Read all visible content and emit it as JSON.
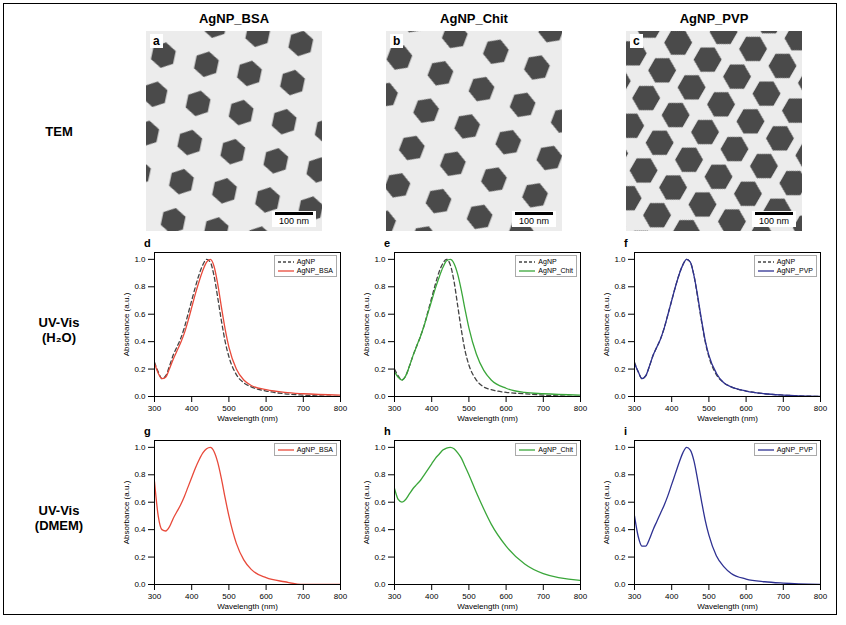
{
  "columns": [
    "AgNP_BSA",
    "AgNP_Chit",
    "AgNP_PVP"
  ],
  "row_labels": [
    "TEM",
    "UV-Vis (H₂O)",
    "UV-Vis (DMEM)"
  ],
  "tem_panels": [
    {
      "panel": "a",
      "scale_bar": "100 nm"
    },
    {
      "panel": "b",
      "scale_bar": "100 nm"
    },
    {
      "panel": "c",
      "scale_bar": "100 nm"
    }
  ],
  "chart_data": [
    {
      "panel": "d",
      "type": "line",
      "x_label": "Wavelength (nm)",
      "y_label": "Absorbance (a.u.)",
      "xlim": [
        300,
        800
      ],
      "ylim": [
        0,
        1.05
      ],
      "xticks": [
        300,
        400,
        500,
        600,
        700,
        800
      ],
      "yticks": [
        {
          "value": 0,
          "label": "0.0"
        },
        {
          "value": 0.2,
          "label": "0.2"
        },
        {
          "value": 0.4,
          "label": "0.4"
        },
        {
          "value": 0.6,
          "label": "0.6"
        },
        {
          "value": 0.8,
          "label": "0.8"
        },
        {
          "value": 1,
          "label": "1.0"
        }
      ],
      "grid": false,
      "legend": "upper right",
      "x": [
        300,
        310,
        320,
        330,
        340,
        350,
        360,
        370,
        380,
        390,
        400,
        410,
        420,
        430,
        440,
        450,
        460,
        470,
        480,
        490,
        500,
        520,
        540,
        560,
        600,
        650,
        700,
        800
      ],
      "series": [
        {
          "name": "AgNP",
          "color": "#444444",
          "line_style": "dashed",
          "values": [
            0.25,
            0.18,
            0.13,
            0.15,
            0.22,
            0.3,
            0.36,
            0.42,
            0.5,
            0.6,
            0.7,
            0.8,
            0.89,
            0.96,
            1.0,
            0.98,
            0.88,
            0.72,
            0.55,
            0.4,
            0.29,
            0.16,
            0.1,
            0.07,
            0.04,
            0.02,
            0.01,
            0.0
          ]
        },
        {
          "name": "AgNP_BSA",
          "color": "#e8493a",
          "line_style": "solid",
          "values": [
            0.24,
            0.17,
            0.13,
            0.14,
            0.2,
            0.27,
            0.33,
            0.39,
            0.46,
            0.55,
            0.65,
            0.75,
            0.84,
            0.92,
            0.98,
            1.0,
            0.95,
            0.82,
            0.65,
            0.49,
            0.36,
            0.2,
            0.12,
            0.08,
            0.05,
            0.03,
            0.02,
            0.01
          ]
        }
      ]
    },
    {
      "panel": "e",
      "type": "line",
      "x_label": "Wavelength (nm)",
      "y_label": "Absorbance (a.u.)",
      "xlim": [
        300,
        800
      ],
      "ylim": [
        0,
        1.05
      ],
      "xticks": [
        300,
        400,
        500,
        600,
        700,
        800
      ],
      "yticks": [
        {
          "value": 0,
          "label": "0.0"
        },
        {
          "value": 0.2,
          "label": "0.2"
        },
        {
          "value": 0.4,
          "label": "0.4"
        },
        {
          "value": 0.6,
          "label": "0.6"
        },
        {
          "value": 0.8,
          "label": "0.8"
        },
        {
          "value": 1,
          "label": "1.0"
        }
      ],
      "grid": false,
      "legend": "upper right",
      "x": [
        300,
        310,
        320,
        330,
        340,
        350,
        360,
        370,
        380,
        390,
        400,
        410,
        420,
        430,
        440,
        450,
        460,
        470,
        480,
        490,
        500,
        520,
        540,
        560,
        600,
        650,
        700,
        800
      ],
      "series": [
        {
          "name": "AgNP",
          "color": "#444444",
          "line_style": "dashed",
          "values": [
            0.2,
            0.15,
            0.12,
            0.15,
            0.22,
            0.3,
            0.37,
            0.44,
            0.52,
            0.62,
            0.72,
            0.82,
            0.91,
            0.97,
            1.0,
            0.96,
            0.84,
            0.66,
            0.48,
            0.33,
            0.23,
            0.12,
            0.07,
            0.05,
            0.03,
            0.02,
            0.01,
            0.0
          ]
        },
        {
          "name": "AgNP_Chit",
          "color": "#3aa63a",
          "line_style": "solid",
          "values": [
            0.18,
            0.14,
            0.12,
            0.15,
            0.22,
            0.3,
            0.37,
            0.44,
            0.52,
            0.61,
            0.7,
            0.79,
            0.87,
            0.94,
            0.99,
            1.0,
            0.97,
            0.89,
            0.77,
            0.63,
            0.5,
            0.31,
            0.19,
            0.12,
            0.06,
            0.03,
            0.02,
            0.01
          ]
        }
      ]
    },
    {
      "panel": "f",
      "type": "line",
      "x_label": "Wavelength (nm)",
      "y_label": "Absorbance (a.u.)",
      "xlim": [
        300,
        800
      ],
      "ylim": [
        0,
        1.05
      ],
      "xticks": [
        300,
        400,
        500,
        600,
        700,
        800
      ],
      "yticks": [
        {
          "value": 0,
          "label": "0.0"
        },
        {
          "value": 0.2,
          "label": "0.2"
        },
        {
          "value": 0.4,
          "label": "0.4"
        },
        {
          "value": 0.6,
          "label": "0.6"
        },
        {
          "value": 0.8,
          "label": "0.8"
        },
        {
          "value": 1,
          "label": "1.0"
        }
      ],
      "grid": false,
      "legend": "upper right",
      "x": [
        300,
        310,
        320,
        330,
        340,
        350,
        360,
        370,
        380,
        390,
        400,
        410,
        420,
        430,
        440,
        450,
        460,
        470,
        480,
        490,
        500,
        520,
        540,
        560,
        600,
        650,
        700,
        800
      ],
      "series": [
        {
          "name": "AgNP",
          "color": "#444444",
          "line_style": "dashed",
          "values": [
            0.25,
            0.18,
            0.13,
            0.15,
            0.22,
            0.3,
            0.36,
            0.42,
            0.5,
            0.6,
            0.7,
            0.8,
            0.89,
            0.96,
            1.0,
            0.98,
            0.88,
            0.72,
            0.55,
            0.4,
            0.29,
            0.16,
            0.1,
            0.07,
            0.04,
            0.02,
            0.01,
            0.0
          ]
        },
        {
          "name": "AgNP_PVP",
          "color": "#2e3192",
          "line_style": "solid",
          "values": [
            0.24,
            0.18,
            0.13,
            0.15,
            0.22,
            0.3,
            0.36,
            0.42,
            0.5,
            0.6,
            0.7,
            0.8,
            0.89,
            0.96,
            1.0,
            0.98,
            0.88,
            0.73,
            0.56,
            0.41,
            0.3,
            0.17,
            0.1,
            0.07,
            0.04,
            0.02,
            0.01,
            0.0
          ]
        }
      ]
    },
    {
      "panel": "g",
      "type": "line",
      "x_label": "Wavelength (nm)",
      "y_label": "Absorbance (a.u.)",
      "xlim": [
        300,
        800
      ],
      "ylim": [
        0,
        1.05
      ],
      "xticks": [
        300,
        400,
        500,
        600,
        700,
        800
      ],
      "yticks": [
        {
          "value": 0,
          "label": "0.0"
        },
        {
          "value": 0.2,
          "label": "0.2"
        },
        {
          "value": 0.4,
          "label": "0.4"
        },
        {
          "value": 0.6,
          "label": "0.6"
        },
        {
          "value": 0.8,
          "label": "0.8"
        },
        {
          "value": 1,
          "label": "1.0"
        }
      ],
      "grid": false,
      "legend": "upper right",
      "x": [
        300,
        310,
        320,
        330,
        340,
        350,
        360,
        370,
        380,
        390,
        400,
        410,
        420,
        430,
        440,
        450,
        460,
        470,
        480,
        490,
        500,
        520,
        540,
        560,
        600,
        650,
        700,
        800
      ],
      "series": [
        {
          "name": "AgNP_BSA",
          "color": "#e8493a",
          "line_style": "solid",
          "values": [
            0.75,
            0.5,
            0.4,
            0.39,
            0.42,
            0.48,
            0.53,
            0.58,
            0.64,
            0.71,
            0.78,
            0.85,
            0.91,
            0.96,
            0.99,
            1.0,
            0.97,
            0.89,
            0.77,
            0.63,
            0.5,
            0.3,
            0.18,
            0.11,
            0.05,
            0.02,
            0.0,
            0.0
          ]
        }
      ]
    },
    {
      "panel": "h",
      "type": "line",
      "x_label": "Wavelength (nm)",
      "y_label": "Absorbance (a.u.)",
      "xlim": [
        300,
        800
      ],
      "ylim": [
        0,
        1.05
      ],
      "xticks": [
        300,
        400,
        500,
        600,
        700,
        800
      ],
      "yticks": [
        {
          "value": 0,
          "label": "0.0"
        },
        {
          "value": 0.2,
          "label": "0.2"
        },
        {
          "value": 0.4,
          "label": "0.4"
        },
        {
          "value": 0.6,
          "label": "0.6"
        },
        {
          "value": 0.8,
          "label": "0.8"
        },
        {
          "value": 1,
          "label": "1.0"
        }
      ],
      "grid": false,
      "legend": "upper right",
      "x": [
        300,
        310,
        320,
        330,
        340,
        350,
        360,
        370,
        380,
        390,
        400,
        410,
        420,
        430,
        440,
        450,
        460,
        470,
        480,
        490,
        500,
        520,
        540,
        560,
        600,
        650,
        700,
        800
      ],
      "series": [
        {
          "name": "AgNP_Chit",
          "color": "#3aa63a",
          "line_style": "solid",
          "values": [
            0.7,
            0.62,
            0.6,
            0.62,
            0.66,
            0.7,
            0.73,
            0.76,
            0.8,
            0.84,
            0.88,
            0.92,
            0.95,
            0.98,
            0.995,
            1.0,
            0.99,
            0.96,
            0.92,
            0.86,
            0.8,
            0.67,
            0.55,
            0.44,
            0.28,
            0.15,
            0.08,
            0.03
          ]
        }
      ]
    },
    {
      "panel": "i",
      "type": "line",
      "x_label": "Wavelength (nm)",
      "y_label": "Absorbance (a.u.)",
      "xlim": [
        300,
        800
      ],
      "ylim": [
        0,
        1.05
      ],
      "xticks": [
        300,
        400,
        500,
        600,
        700,
        800
      ],
      "yticks": [
        {
          "value": 0,
          "label": "0.0"
        },
        {
          "value": 0.2,
          "label": "0.2"
        },
        {
          "value": 0.4,
          "label": "0.4"
        },
        {
          "value": 0.6,
          "label": "0.6"
        },
        {
          "value": 0.8,
          "label": "0.8"
        },
        {
          "value": 1,
          "label": "1.0"
        }
      ],
      "grid": false,
      "legend": "upper right",
      "x": [
        300,
        310,
        320,
        330,
        340,
        350,
        360,
        370,
        380,
        390,
        400,
        410,
        420,
        430,
        440,
        450,
        460,
        470,
        480,
        490,
        500,
        520,
        540,
        560,
        600,
        650,
        700,
        800
      ],
      "series": [
        {
          "name": "AgNP_PVP",
          "color": "#2e3192",
          "line_style": "solid",
          "values": [
            0.5,
            0.35,
            0.28,
            0.28,
            0.33,
            0.4,
            0.46,
            0.52,
            0.58,
            0.65,
            0.73,
            0.81,
            0.89,
            0.96,
            1.0,
            0.98,
            0.9,
            0.76,
            0.61,
            0.47,
            0.36,
            0.21,
            0.13,
            0.08,
            0.04,
            0.02,
            0.01,
            0.0
          ]
        }
      ]
    }
  ]
}
